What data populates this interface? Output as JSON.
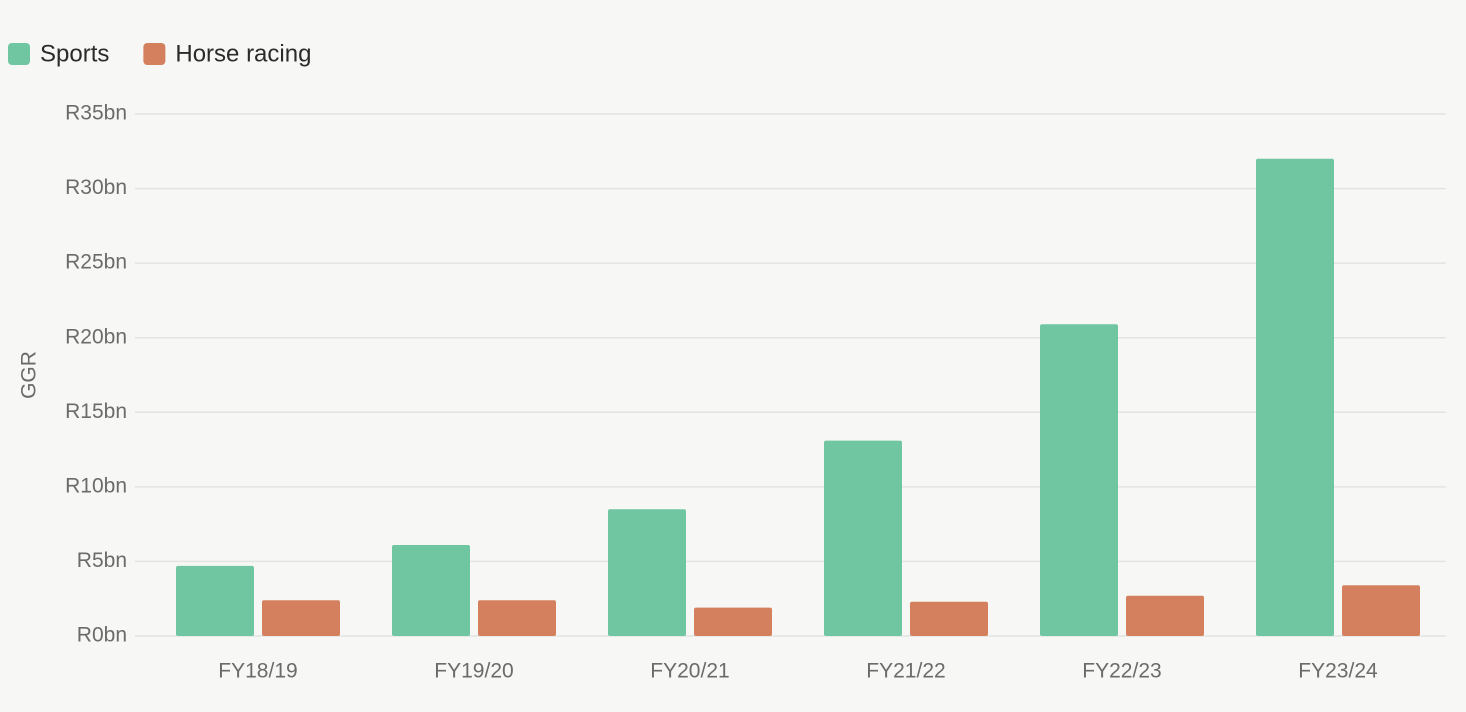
{
  "chart_data": {
    "type": "bar",
    "ylabel": "GGR",
    "categories": [
      "FY18/19",
      "FY19/20",
      "FY20/21",
      "FY21/22",
      "FY22/23",
      "FY23/24"
    ],
    "series": [
      {
        "name": "Sports",
        "color": "#6fc6a0",
        "values": [
          4.7,
          6.1,
          8.5,
          13.1,
          20.9,
          32.0
        ]
      },
      {
        "name": "Horse racing",
        "color": "#d4805f",
        "values": [
          2.4,
          2.4,
          1.9,
          2.3,
          2.7,
          3.4
        ]
      }
    ],
    "ylim": [
      0,
      35
    ],
    "yticks": [
      {
        "value": 0,
        "label": "R0bn"
      },
      {
        "value": 5,
        "label": "R5bn"
      },
      {
        "value": 10,
        "label": "R10bn"
      },
      {
        "value": 15,
        "label": "R15bn"
      },
      {
        "value": 20,
        "label": "R20bn"
      },
      {
        "value": 25,
        "label": "R25bn"
      },
      {
        "value": 30,
        "label": "R30bn"
      },
      {
        "value": 35,
        "label": "R35bn"
      }
    ],
    "grid": true,
    "legend": "top-left"
  }
}
